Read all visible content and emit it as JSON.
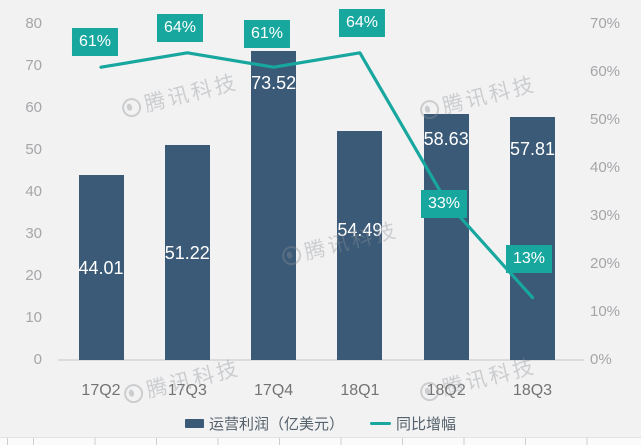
{
  "watermark": {
    "text": "腾讯科技"
  },
  "colors": {
    "background": "#f2f2f3",
    "bar": "#3a5a78",
    "line": "#18a79f",
    "axis_tick_text": "#a6a6a9",
    "x_label_text": "#737373",
    "legend_text": "#54606b",
    "value_label_text": "#ffffff",
    "baseline": "#dcdcdc"
  },
  "chart_data": {
    "type": "bar",
    "title": "",
    "categories": [
      "17Q2",
      "17Q3",
      "17Q4",
      "18Q1",
      "18Q2",
      "18Q3"
    ],
    "series": [
      {
        "name": "运营利润（亿美元）",
        "type": "bar",
        "color": "#3a5a78",
        "values": [
          44.01,
          51.22,
          73.52,
          54.49,
          58.63,
          57.81
        ],
        "labels": [
          "44.01",
          "51.22",
          "73.52",
          "54.49",
          "58.63",
          "57.81"
        ]
      },
      {
        "name": "同比增幅",
        "type": "line",
        "color": "#18a79f",
        "values": [
          61,
          64,
          61,
          64,
          33,
          13
        ],
        "labels": [
          "61%",
          "64%",
          "61%",
          "64%",
          "33%",
          "13%"
        ]
      }
    ],
    "left_axis": {
      "min": 0,
      "max": 80,
      "step": 10,
      "ticks": [
        "0",
        "10",
        "20",
        "30",
        "40",
        "50",
        "60",
        "70",
        "80"
      ]
    },
    "right_axis": {
      "min": 0,
      "max": 70,
      "step": 10,
      "ticks": [
        "0%",
        "10%",
        "20%",
        "30%",
        "40%",
        "50%",
        "60%",
        "70%"
      ]
    },
    "legend": {
      "position": "bottom",
      "items": [
        "运营利润（亿美元）",
        "同比增幅"
      ]
    },
    "grid": false
  }
}
